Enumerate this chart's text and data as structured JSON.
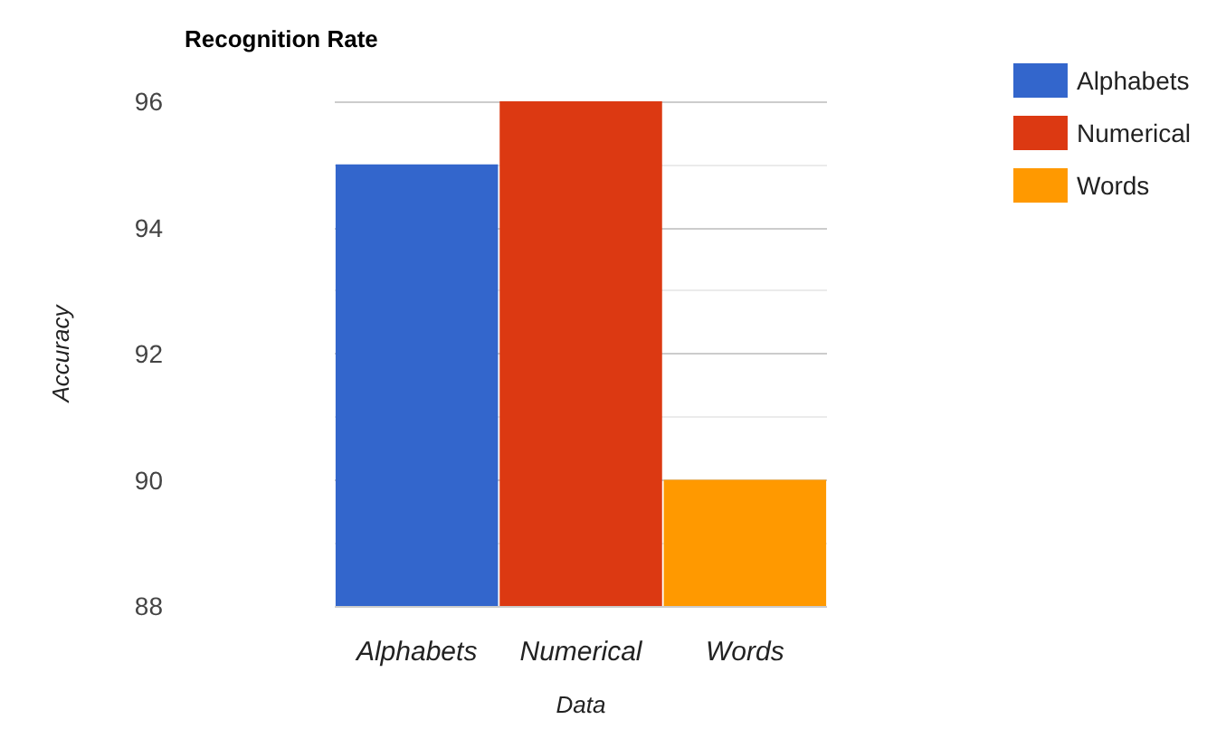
{
  "chart_data": {
    "type": "bar",
    "title": "Recognition Rate",
    "xlabel": "Data",
    "ylabel": "Accuracy",
    "categories": [
      "Alphabets",
      "Numerical",
      "Words"
    ],
    "series": [
      {
        "name": "Alphabets",
        "color": "#3366cc",
        "values": [
          95,
          null,
          null
        ]
      },
      {
        "name": "Numerical",
        "color": "#dc3912",
        "values": [
          null,
          96,
          null
        ]
      },
      {
        "name": "Words",
        "color": "#ff9900",
        "values": [
          null,
          null,
          90
        ]
      }
    ],
    "stacked": true,
    "ylim": [
      88,
      96
    ],
    "yticks": [
      88,
      90,
      92,
      94,
      96
    ],
    "grid": true,
    "legend": "top right"
  }
}
